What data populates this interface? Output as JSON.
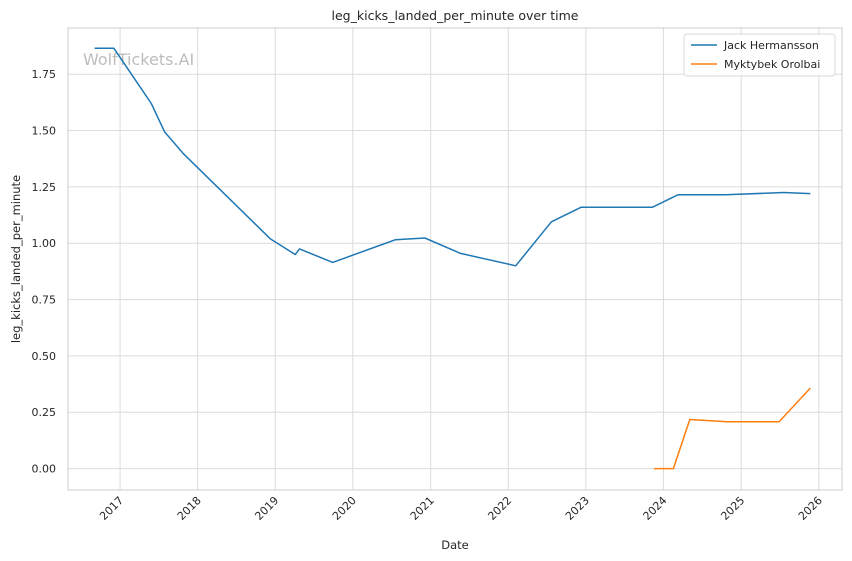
{
  "watermark": "WolfTickets.AI",
  "chart_data": {
    "type": "line",
    "title": "leg_kicks_landed_per_minute over time",
    "xlabel": "Date",
    "ylabel": "leg_kicks_landed_per_minute",
    "xlim": [
      "2016-05-01",
      "2026-04-20"
    ],
    "ylim": [
      -0.095,
      1.955
    ],
    "x_ticks": [
      "2017",
      "2018",
      "2019",
      "2020",
      "2021",
      "2022",
      "2023",
      "2024",
      "2025",
      "2026"
    ],
    "y_ticks": [
      "0.00",
      "0.25",
      "0.50",
      "0.75",
      "1.00",
      "1.25",
      "1.50",
      "1.75"
    ],
    "grid": true,
    "legend_position": "top-right",
    "series": [
      {
        "name": "Jack Hermansson",
        "color": "#1f77b4",
        "points": [
          {
            "x": "2016-09-03",
            "y": 1.865
          },
          {
            "x": "2016-12-03",
            "y": 1.865
          },
          {
            "x": "2017-05-28",
            "y": 1.62
          },
          {
            "x": "2017-07-29",
            "y": 1.495
          },
          {
            "x": "2017-10-28",
            "y": 1.395
          },
          {
            "x": "2018-12-08",
            "y": 1.02
          },
          {
            "x": "2019-04-05",
            "y": 0.95
          },
          {
            "x": "2019-04-25",
            "y": 0.975
          },
          {
            "x": "2019-09-28",
            "y": 0.915
          },
          {
            "x": "2020-07-18",
            "y": 1.015
          },
          {
            "x": "2020-12-05",
            "y": 1.023
          },
          {
            "x": "2021-05-22",
            "y": 0.955
          },
          {
            "x": "2022-02-05",
            "y": 0.9
          },
          {
            "x": "2022-07-23",
            "y": 1.095
          },
          {
            "x": "2022-12-10",
            "y": 1.16
          },
          {
            "x": "2023-11-11",
            "y": 1.16
          },
          {
            "x": "2024-03-09",
            "y": 1.215
          },
          {
            "x": "2024-10-19",
            "y": 1.215
          },
          {
            "x": "2025-07-19",
            "y": 1.225
          },
          {
            "x": "2025-11-22",
            "y": 1.22
          }
        ]
      },
      {
        "name": "Myktybek Orolbai",
        "color": "#ff7f0e",
        "points": [
          {
            "x": "2023-11-18",
            "y": 0.0
          },
          {
            "x": "2024-02-17",
            "y": 0.0
          },
          {
            "x": "2024-05-04",
            "y": 0.218
          },
          {
            "x": "2024-10-26",
            "y": 0.208
          },
          {
            "x": "2025-06-28",
            "y": 0.208
          },
          {
            "x": "2025-11-22",
            "y": 0.357
          }
        ]
      }
    ]
  }
}
